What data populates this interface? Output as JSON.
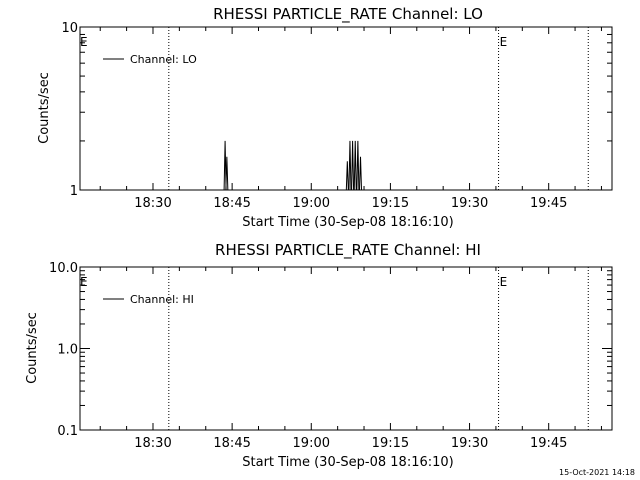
{
  "footer_stamp": "15-Oct-2021 14:18",
  "chart_data": [
    {
      "type": "line",
      "title": "RHESSI PARTICLE_RATE Channel: LO",
      "xlabel": "Start Time (30-Sep-08 18:16:10)",
      "ylabel": "Counts/sec",
      "yscale": "log",
      "ylim": [
        1,
        10
      ],
      "xlim": [
        "18:16:10",
        "19:57:00"
      ],
      "x_ticks": [
        "18:30",
        "18:45",
        "19:00",
        "19:15",
        "19:30",
        "19:45"
      ],
      "y_ticks": [
        {
          "value": 1,
          "label": "1"
        },
        {
          "value": 10,
          "label": "10"
        }
      ],
      "legend": {
        "label": "Channel: LO",
        "position": "top-left"
      },
      "series": [
        {
          "name": "Channel: LO",
          "spikes": [
            {
              "time": "18:43:40",
              "value": 2.0
            },
            {
              "time": "18:44:00",
              "value": 1.6
            },
            {
              "time": "19:06:50",
              "value": 1.5
            },
            {
              "time": "19:07:20",
              "value": 2.0
            },
            {
              "time": "19:07:50",
              "value": 2.0
            },
            {
              "time": "19:08:20",
              "value": 2.0
            },
            {
              "time": "19:08:50",
              "value": 2.0
            },
            {
              "time": "19:09:20",
              "value": 1.6
            }
          ]
        }
      ],
      "event_markers": [
        {
          "time": "18:16:10",
          "label": "E"
        },
        {
          "time": "18:33:00",
          "label": ""
        },
        {
          "time": "19:35:30",
          "label": "E"
        },
        {
          "time": "19:52:30",
          "label": ""
        }
      ]
    },
    {
      "type": "line",
      "title": "RHESSI PARTICLE_RATE Channel: HI",
      "xlabel": "Start Time (30-Sep-08 18:16:10)",
      "ylabel": "Counts/sec",
      "yscale": "log",
      "ylim": [
        0.1,
        10
      ],
      "xlim": [
        "18:16:10",
        "19:57:00"
      ],
      "x_ticks": [
        "18:30",
        "18:45",
        "19:00",
        "19:15",
        "19:30",
        "19:45"
      ],
      "y_ticks": [
        {
          "value": 0.1,
          "label": "0.1"
        },
        {
          "value": 1,
          "label": "1.0"
        },
        {
          "value": 10,
          "label": "10.0"
        }
      ],
      "legend": {
        "label": "Channel: HI",
        "position": "top-left"
      },
      "series": [
        {
          "name": "Channel: HI",
          "spikes": []
        }
      ],
      "event_markers": [
        {
          "time": "18:16:10",
          "label": "E"
        },
        {
          "time": "18:33:00",
          "label": ""
        },
        {
          "time": "19:35:30",
          "label": "E"
        },
        {
          "time": "19:52:30",
          "label": ""
        }
      ]
    }
  ]
}
